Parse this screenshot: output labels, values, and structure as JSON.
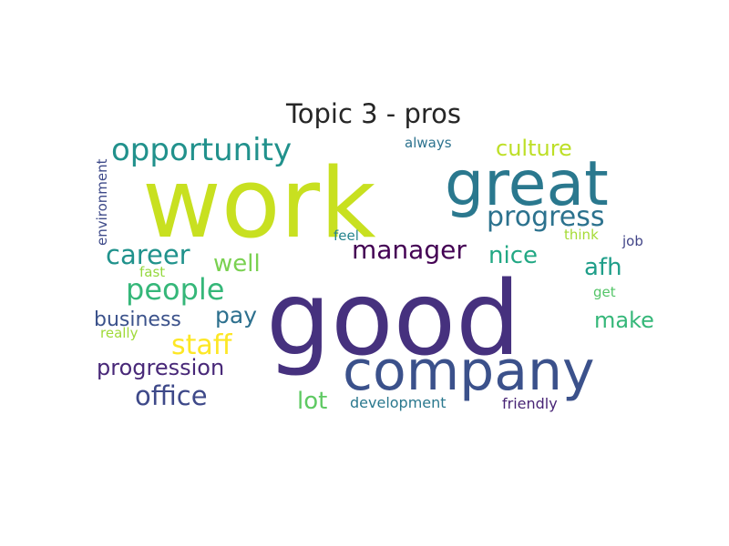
{
  "chart_data": {
    "type": "wordcloud",
    "title": "Topic 3 - pros",
    "colormap": "viridis",
    "words": [
      {
        "text": "work",
        "color": "#c8e020"
      },
      {
        "text": "good",
        "color": "#46317e"
      },
      {
        "text": "great",
        "color": "#2a788e"
      },
      {
        "text": "company",
        "color": "#3b518b"
      },
      {
        "text": "opportunity",
        "color": "#21918c"
      },
      {
        "text": "progress",
        "color": "#2c728e"
      },
      {
        "text": "culture",
        "color": "#bddf26"
      },
      {
        "text": "always",
        "color": "#2c728e"
      },
      {
        "text": "environment",
        "color": "#3e4a89"
      },
      {
        "text": "career",
        "color": "#20928c"
      },
      {
        "text": "well",
        "color": "#7ad151"
      },
      {
        "text": "manager",
        "color": "#440154"
      },
      {
        "text": "nice",
        "color": "#22a884"
      },
      {
        "text": "afh",
        "color": "#1f9e89"
      },
      {
        "text": "people",
        "color": "#35b779"
      },
      {
        "text": "feel",
        "color": "#25848e"
      },
      {
        "text": "think",
        "color": "#a5db36"
      },
      {
        "text": "job",
        "color": "#414487"
      },
      {
        "text": "fast",
        "color": "#95d840"
      },
      {
        "text": "get",
        "color": "#54c568"
      },
      {
        "text": "business",
        "color": "#3b528b"
      },
      {
        "text": "pay",
        "color": "#2d708e"
      },
      {
        "text": "make",
        "color": "#35b779"
      },
      {
        "text": "really",
        "color": "#a0da39"
      },
      {
        "text": "staff",
        "color": "#fde725"
      },
      {
        "text": "progression",
        "color": "#482878"
      },
      {
        "text": "office",
        "color": "#3e4989"
      },
      {
        "text": "lot",
        "color": "#5ec962"
      },
      {
        "text": "development",
        "color": "#2a788e"
      },
      {
        "text": "friendly",
        "color": "#482475"
      }
    ]
  }
}
